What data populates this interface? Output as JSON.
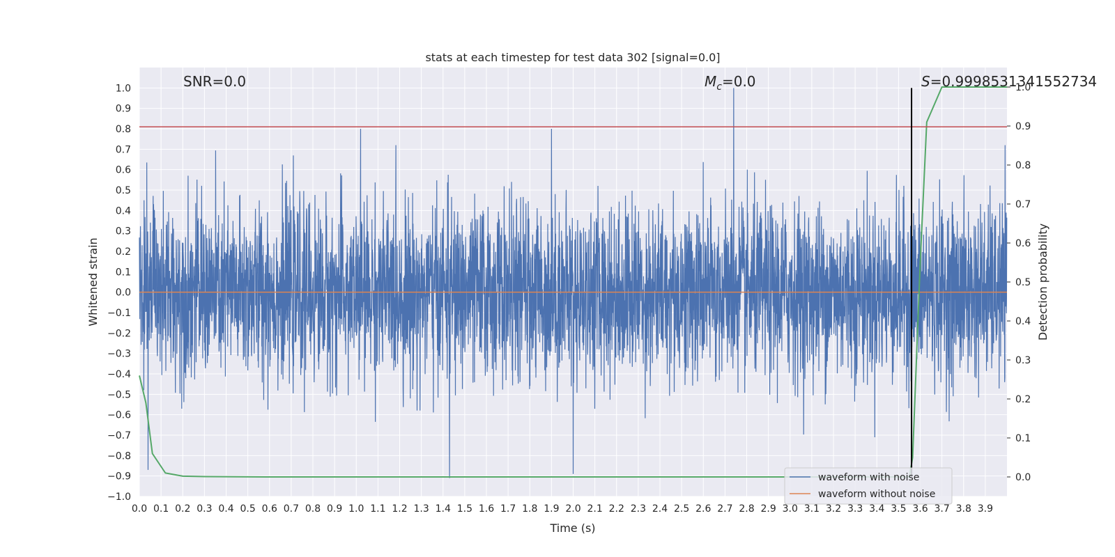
{
  "chart_data": {
    "type": "line",
    "title": "stats at each timestep for test data 302 [signal=0.0]",
    "xlabel": "Time (s)",
    "ylabel": "Whitened strain",
    "y2label": "Detection probability",
    "xlim": [
      0.0,
      4.0
    ],
    "ylim": [
      -1.0,
      1.1
    ],
    "y2lim": [
      -0.05,
      1.05
    ],
    "xticks": [
      "0.0",
      "0.1",
      "0.2",
      "0.3",
      "0.4",
      "0.5",
      "0.6",
      "0.7",
      "0.8",
      "0.9",
      "1.0",
      "1.1",
      "1.2",
      "1.3",
      "1.4",
      "1.5",
      "1.6",
      "1.7",
      "1.8",
      "1.9",
      "2.0",
      "2.1",
      "2.2",
      "2.3",
      "2.4",
      "2.5",
      "2.6",
      "2.7",
      "2.8",
      "2.9",
      "3.0",
      "3.1",
      "3.2",
      "3.3",
      "3.4",
      "3.5",
      "3.6",
      "3.7",
      "3.8",
      "3.9"
    ],
    "yticks": [
      "−1.0",
      "−0.9",
      "−0.8",
      "−0.7",
      "−0.6",
      "−0.5",
      "−0.4",
      "−0.3",
      "−0.2",
      "−0.1",
      "0.0",
      "0.1",
      "0.2",
      "0.3",
      "0.4",
      "0.5",
      "0.6",
      "0.7",
      "0.8",
      "0.9",
      "1.0"
    ],
    "y2ticks": [
      "0.0",
      "0.1",
      "0.2",
      "0.3",
      "0.4",
      "0.5",
      "0.6",
      "0.7",
      "0.8",
      "0.9",
      "1.0"
    ],
    "grid": true,
    "legend_position": "lower-right",
    "annotations": {
      "snr_text": "SNR=0.0",
      "mc_symbol": "M",
      "mc_sub": "c",
      "mc_value": "=0.0",
      "s_symbol": "S",
      "s_value": "=0.9998531341552734"
    },
    "threshold_y": 0.81,
    "marker_x": 3.56,
    "series": [
      {
        "name": "waveform with noise",
        "color": "#4c72b0",
        "description_free": true,
        "notable_peaks": [
          [
            1.02,
            0.8
          ],
          [
            1.9,
            0.8
          ],
          [
            2.74,
            1.0
          ],
          [
            1.43,
            -0.91
          ],
          [
            2.0,
            -0.89
          ],
          [
            0.04,
            -0.87
          ]
        ]
      },
      {
        "name": "waveform without noise",
        "color": "#dd8452",
        "values": [
          [
            0.0,
            0.0
          ],
          [
            4.0,
            0.0
          ]
        ]
      },
      {
        "name": "",
        "color": "#55a868",
        "axis": "secondary",
        "values": [
          [
            0.0,
            0.26
          ],
          [
            0.03,
            0.19
          ],
          [
            0.06,
            0.06
          ],
          [
            0.12,
            0.01
          ],
          [
            0.2,
            0.002
          ],
          [
            0.3,
            0.001
          ],
          [
            0.6,
            0.0
          ],
          [
            1.0,
            0.0
          ],
          [
            2.0,
            0.0
          ],
          [
            3.0,
            0.0
          ],
          [
            3.55,
            0.0
          ],
          [
            3.565,
            0.05
          ],
          [
            3.6,
            0.55
          ],
          [
            3.63,
            0.91
          ],
          [
            3.7,
            1.0
          ],
          [
            4.0,
            1.0
          ]
        ]
      }
    ],
    "threshold_color": "#c44e52",
    "marker_color": "#000000"
  }
}
